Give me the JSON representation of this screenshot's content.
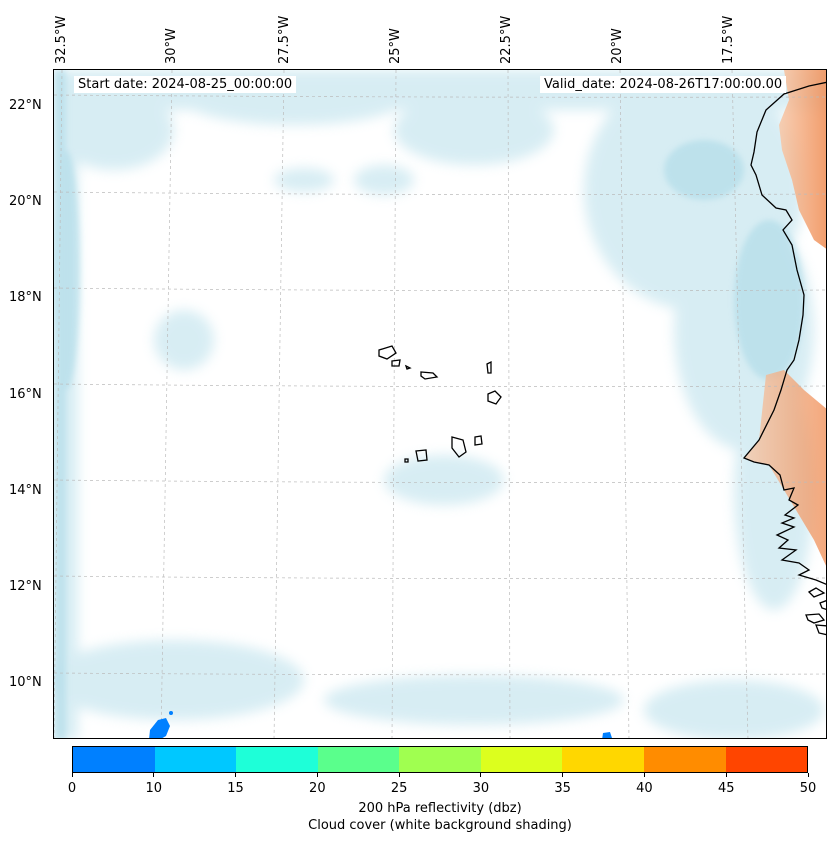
{
  "map": {
    "start_date": "Start date: 2024-08-25_00:00:00",
    "valid_date": "Valid_date: 2024-08-26T17:00:00.00",
    "lon_labels": [
      "32.5°W",
      "30°W",
      "27.5°W",
      "25°W",
      "22.5°W",
      "20°W",
      "17.5°W"
    ],
    "lat_labels": [
      "22°N",
      "20°N",
      "18°N",
      "16°N",
      "14°N",
      "12°N",
      "10°N"
    ],
    "features": [
      "Cape Verde islands",
      "West African coastline",
      "cloud cover shading",
      "reflectivity echoes"
    ]
  },
  "colorbar": {
    "ticks": [
      "0",
      "10",
      "15",
      "20",
      "25",
      "30",
      "35",
      "40",
      "45",
      "50"
    ],
    "colors": [
      "#0080ff",
      "#00c8ff",
      "#1effd8",
      "#5aff8c",
      "#a0ff50",
      "#dcff1e",
      "#ffd700",
      "#ff8c00",
      "#ff4500"
    ],
    "label_line1": "200 hPa reflectivity (dbz)",
    "label_line2": "Cloud cover (white background shading)"
  },
  "colors": {
    "cloud": "#a8d8e6",
    "land_warm": "#f4a070",
    "echo_blue": "#0080ff"
  }
}
